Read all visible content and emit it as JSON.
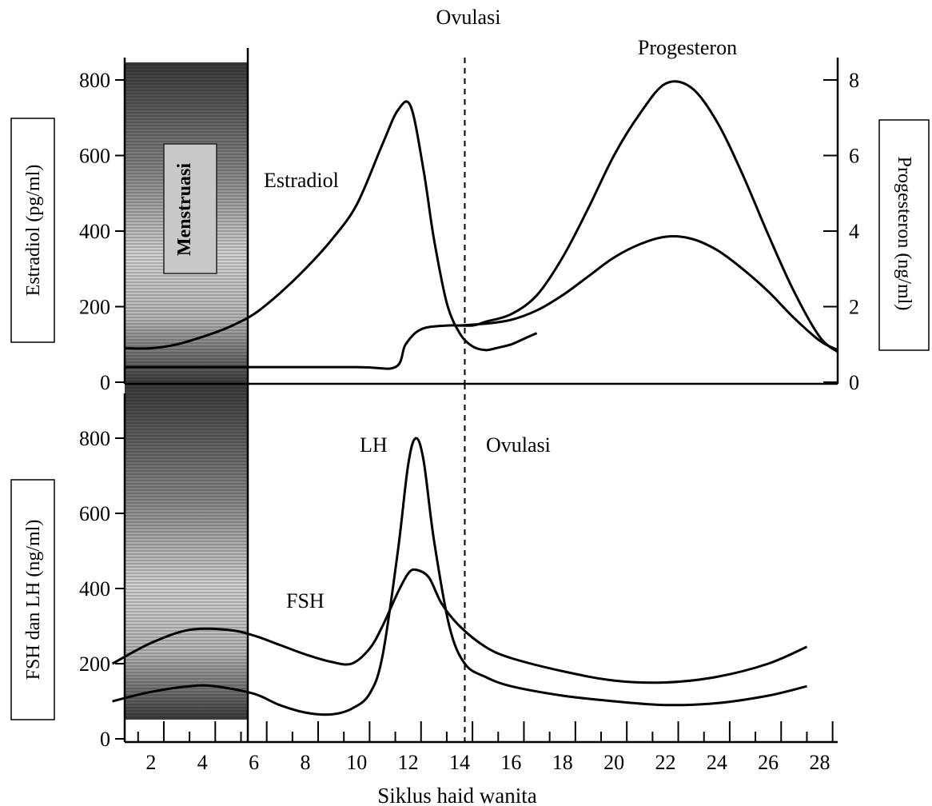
{
  "chart_data": [
    {
      "type": "line",
      "panel": "top",
      "top_label": "Ovulasi",
      "ylabel_left": "Estradiol (pg/ml)",
      "ylabel_right": "Progesteron (ng/ml)",
      "yticks_left": [
        "0",
        "200",
        "400",
        "600",
        "800"
      ],
      "yticks_right": [
        "0",
        "2",
        "4",
        "6",
        "8"
      ],
      "ylim_left": [
        0,
        850
      ],
      "ylim_right": [
        0,
        8.5
      ],
      "shaded_band_label": "Menstruasi",
      "shaded_band_days": [
        1,
        5.5
      ],
      "ovulation_day": 14.2,
      "annotations": [
        "Estradiol",
        "Progesteron"
      ],
      "series": [
        {
          "name": "Estradiol",
          "axis": "left",
          "x": [
            1,
            2,
            3,
            4,
            5,
            6,
            7,
            8,
            9,
            10,
            11,
            11.6,
            12.1,
            12.6,
            13,
            13.5,
            14,
            14.5,
            15,
            15.4,
            16,
            16.5,
            17
          ],
          "y": [
            90,
            90,
            100,
            120,
            145,
            180,
            235,
            300,
            375,
            470,
            630,
            720,
            730,
            560,
            380,
            210,
            130,
            95,
            85,
            90,
            100,
            115,
            130
          ]
        },
        {
          "name": "Progesteron",
          "axis": "right",
          "x": [
            1,
            5,
            10,
            11.5,
            11.9,
            12.5,
            13.5,
            14.5,
            15,
            16,
            17,
            18,
            19,
            20,
            21,
            22,
            23,
            24,
            25,
            26,
            27,
            28,
            28.7
          ],
          "y": [
            0.4,
            0.4,
            0.4,
            0.4,
            1.0,
            1.4,
            1.5,
            1.5,
            1.6,
            1.8,
            2.3,
            3.3,
            4.6,
            6.0,
            7.1,
            7.9,
            7.8,
            6.9,
            5.5,
            3.9,
            2.4,
            1.2,
            0.8
          ]
        },
        {
          "name": "",
          "axis": "left",
          "x": [
            14,
            15,
            16,
            17,
            18,
            19,
            20,
            21,
            22,
            23,
            24,
            25,
            26,
            27,
            28,
            28.7
          ],
          "y": [
            150,
            155,
            165,
            190,
            230,
            280,
            330,
            365,
            385,
            380,
            350,
            300,
            240,
            170,
            110,
            85
          ]
        }
      ]
    },
    {
      "type": "line",
      "panel": "bottom",
      "ylabel": "FSH dan LH (ng/ml)",
      "yticks": [
        "0",
        "200",
        "400",
        "600",
        "800"
      ],
      "ylim": [
        0,
        850
      ],
      "xlabel": "Siklus haid wanita",
      "xticks": [
        "2",
        "4",
        "6",
        "8",
        "10",
        "12",
        "14",
        "16",
        "18",
        "20",
        "22",
        "24",
        "26",
        "28"
      ],
      "xlim": [
        0.5,
        29
      ],
      "ovulation_day": 14.2,
      "annotations": [
        "LH",
        "Ovulasi",
        "FSH"
      ],
      "series": [
        {
          "name": "LH",
          "x": [
            0.5,
            2,
            3.5,
            4.5,
            6,
            7,
            8,
            9,
            9.8,
            10.5,
            11,
            11.6,
            12,
            12.3,
            12.6,
            13,
            13.6,
            14.2,
            15,
            16,
            18,
            20,
            22,
            24,
            26,
            27.5
          ],
          "y": [
            100,
            125,
            140,
            140,
            120,
            90,
            70,
            65,
            80,
            120,
            220,
            500,
            730,
            800,
            740,
            530,
            300,
            200,
            165,
            140,
            115,
            100,
            90,
            95,
            115,
            140
          ]
        },
        {
          "name": "FSH",
          "x": [
            0.5,
            2,
            3.5,
            5,
            6,
            7,
            8,
            9,
            9.8,
            10.5,
            11,
            11.6,
            12,
            12.3,
            12.8,
            13.3,
            14,
            15,
            16,
            18,
            20,
            22,
            24,
            26,
            27.5
          ],
          "y": [
            200,
            255,
            290,
            290,
            275,
            250,
            225,
            205,
            200,
            240,
            300,
            390,
            440,
            450,
            430,
            360,
            300,
            245,
            215,
            180,
            155,
            150,
            165,
            200,
            245
          ]
        }
      ]
    }
  ]
}
